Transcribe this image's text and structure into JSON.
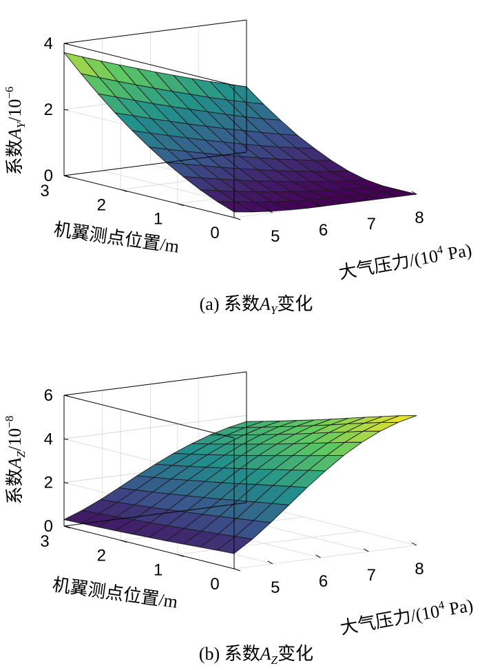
{
  "chart_data": [
    {
      "id": "a",
      "type": "surface3d",
      "caption": {
        "prefix": "(a) 系数",
        "var": "A",
        "sub": "Y",
        "suffix": "变化"
      },
      "zlabel": {
        "prefix": "系数",
        "var": "A",
        "sub": "Y",
        "suffix": "/10",
        "exp": "−6"
      },
      "xlabel": "机翼测点位置/m",
      "ylabel": {
        "prefix": "大气压力/(10",
        "exp": "4",
        "suffix": " Pa)"
      },
      "x_range": [
        0,
        3
      ],
      "y_range": [
        4.2,
        8
      ],
      "z_range": [
        0,
        4
      ],
      "x_ticks": [
        0,
        1,
        2,
        3
      ],
      "y_ticks": [
        5,
        6,
        7,
        8
      ],
      "z_ticks": [
        0,
        2,
        4
      ],
      "x_tick_labels": [
        "0",
        "1",
        "2",
        "3"
      ],
      "y_tick_labels": [
        "5",
        "6",
        "7",
        "8"
      ],
      "z_tick_labels": [
        "0",
        "2",
        "4"
      ],
      "x_values": [
        0,
        0.3,
        0.6,
        0.9,
        1.2,
        1.5,
        1.8,
        2.1,
        2.4,
        2.7,
        3.0
      ],
      "y_values": [
        4.2,
        4.58,
        4.96,
        5.34,
        5.72,
        6.1,
        6.48,
        6.86,
        7.24,
        7.62,
        8.0
      ],
      "z_values": [
        [
          0.17,
          0.1,
          0.05,
          0.02,
          0.0,
          0.0,
          0.0,
          0.0,
          0.0,
          0.0,
          0.0
        ],
        [
          0.36,
          0.28,
          0.2,
          0.14,
          0.09,
          0.05,
          0.03,
          0.01,
          0.0,
          0.0,
          0.0
        ],
        [
          0.59,
          0.49,
          0.4,
          0.32,
          0.24,
          0.18,
          0.12,
          0.08,
          0.04,
          0.02,
          0.0
        ],
        [
          0.86,
          0.75,
          0.64,
          0.54,
          0.44,
          0.36,
          0.28,
          0.21,
          0.15,
          0.1,
          0.06
        ],
        [
          1.16,
          1.04,
          0.92,
          0.8,
          0.69,
          0.59,
          0.49,
          0.4,
          0.32,
          0.25,
          0.19
        ],
        [
          1.5,
          1.36,
          1.23,
          1.1,
          0.98,
          0.86,
          0.75,
          0.64,
          0.55,
          0.46,
          0.38
        ],
        [
          1.87,
          1.72,
          1.58,
          1.44,
          1.3,
          1.17,
          1.04,
          0.92,
          0.81,
          0.71,
          0.62
        ],
        [
          2.28,
          2.12,
          1.96,
          1.81,
          1.66,
          1.52,
          1.38,
          1.25,
          1.12,
          1.0,
          0.89
        ],
        [
          2.73,
          2.56,
          2.39,
          2.22,
          2.06,
          1.91,
          1.76,
          1.61,
          1.47,
          1.34,
          1.22
        ],
        [
          3.21,
          3.02,
          2.84,
          2.66,
          2.49,
          2.32,
          2.16,
          2.0,
          1.85,
          1.71,
          1.58
        ],
        [
          3.72,
          3.52,
          3.33,
          3.14,
          2.96,
          2.78,
          2.61,
          2.44,
          2.28,
          2.13,
          1.98
        ]
      ],
      "colormap": [
        "#440154",
        "#3b528b",
        "#21918c",
        "#5ec962",
        "#fde725"
      ]
    },
    {
      "id": "b",
      "type": "surface3d",
      "caption": {
        "prefix": "(b) 系数",
        "var": "A",
        "sub": "Z",
        "suffix": "变化"
      },
      "zlabel": {
        "prefix": "系数",
        "var": "A",
        "sub": "Z",
        "suffix": "/10",
        "exp": "−8"
      },
      "xlabel": "机翼测点位置/m",
      "ylabel": {
        "prefix": "大气压力/(10",
        "exp": "4",
        "suffix": " Pa)"
      },
      "x_range": [
        0,
        3
      ],
      "y_range": [
        4.2,
        8
      ],
      "z_range": [
        0,
        6
      ],
      "x_ticks": [
        0,
        1,
        2,
        3
      ],
      "y_ticks": [
        5,
        6,
        7,
        8
      ],
      "z_ticks": [
        0,
        2,
        4,
        6
      ],
      "x_tick_labels": [
        "0",
        "1",
        "2",
        "3"
      ],
      "y_tick_labels": [
        "5",
        "6",
        "7",
        "8"
      ],
      "z_tick_labels": [
        "0",
        "2",
        "4",
        "6"
      ],
      "x_values": [
        0,
        0.3,
        0.6,
        0.9,
        1.2,
        1.5,
        1.8,
        2.1,
        2.4,
        2.7,
        3.0
      ],
      "y_values": [
        4.2,
        4.58,
        4.96,
        5.34,
        5.72,
        6.1,
        6.48,
        6.86,
        7.24,
        7.62,
        8.0
      ],
      "z_values": [
        [
          0.7,
          1.25,
          1.9,
          2.6,
          3.3,
          3.95,
          4.55,
          5.05,
          5.45,
          5.75,
          5.95
        ],
        [
          0.65,
          1.18,
          1.8,
          2.48,
          3.15,
          3.78,
          4.35,
          4.85,
          5.25,
          5.55,
          5.75
        ],
        [
          0.6,
          1.1,
          1.7,
          2.35,
          3.0,
          3.6,
          4.15,
          4.63,
          5.02,
          5.32,
          5.52
        ],
        [
          0.55,
          1.03,
          1.6,
          2.22,
          2.85,
          3.43,
          3.96,
          4.42,
          4.8,
          5.09,
          5.29
        ],
        [
          0.5,
          0.96,
          1.5,
          2.09,
          2.69,
          3.25,
          3.76,
          4.2,
          4.57,
          4.85,
          5.05
        ],
        [
          0.46,
          0.89,
          1.41,
          1.97,
          2.54,
          3.08,
          3.57,
          3.99,
          4.34,
          4.62,
          4.81
        ],
        [
          0.42,
          0.83,
          1.32,
          1.85,
          2.4,
          2.91,
          3.38,
          3.79,
          4.13,
          4.39,
          4.58
        ],
        [
          0.38,
          0.77,
          1.23,
          1.74,
          2.26,
          2.75,
          3.2,
          3.59,
          3.92,
          4.18,
          4.36
        ],
        [
          0.35,
          0.71,
          1.15,
          1.63,
          2.12,
          2.59,
          3.02,
          3.4,
          3.71,
          3.96,
          4.14
        ],
        [
          0.32,
          0.66,
          1.07,
          1.53,
          2.0,
          2.44,
          2.85,
          3.21,
          3.51,
          3.75,
          3.93
        ],
        [
          0.3,
          0.62,
          1.0,
          1.43,
          1.88,
          2.3,
          2.69,
          3.03,
          3.32,
          3.55,
          3.72
        ]
      ],
      "colormap": [
        "#440154",
        "#3b528b",
        "#21918c",
        "#5ec962",
        "#fde725"
      ]
    }
  ]
}
